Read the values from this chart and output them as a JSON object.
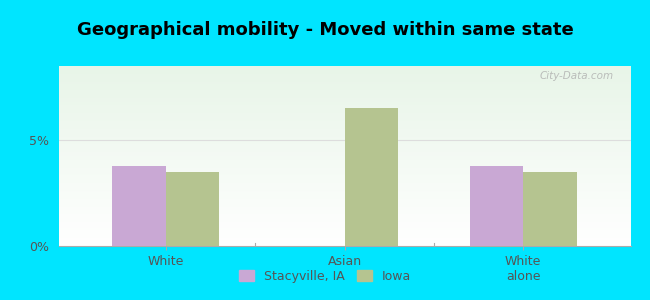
{
  "title": "Geographical mobility - Moved within same state",
  "categories": [
    "White",
    "Asian",
    "White\nalone"
  ],
  "stacyville_values": [
    3.8,
    0.0,
    3.8
  ],
  "iowa_values": [
    3.5,
    6.5,
    3.5
  ],
  "ylim": [
    0,
    8.5
  ],
  "yticks": [
    0,
    5
  ],
  "ytick_labels": [
    "0%",
    "5%"
  ],
  "bar_width": 0.3,
  "stacyville_color": "#c9a8d4",
  "iowa_color": "#b5c490",
  "background_color": "#00e5ff",
  "plot_bg_color_top": "#e8f5e8",
  "plot_bg_color_bottom": "#ffffff",
  "legend_label_stacyville": "Stacyville, IA",
  "legend_label_iowa": "Iowa",
  "title_fontsize": 13,
  "tick_fontsize": 9,
  "legend_fontsize": 9,
  "gridline_color": "#dddddd",
  "watermark_text": "City-Data.com"
}
